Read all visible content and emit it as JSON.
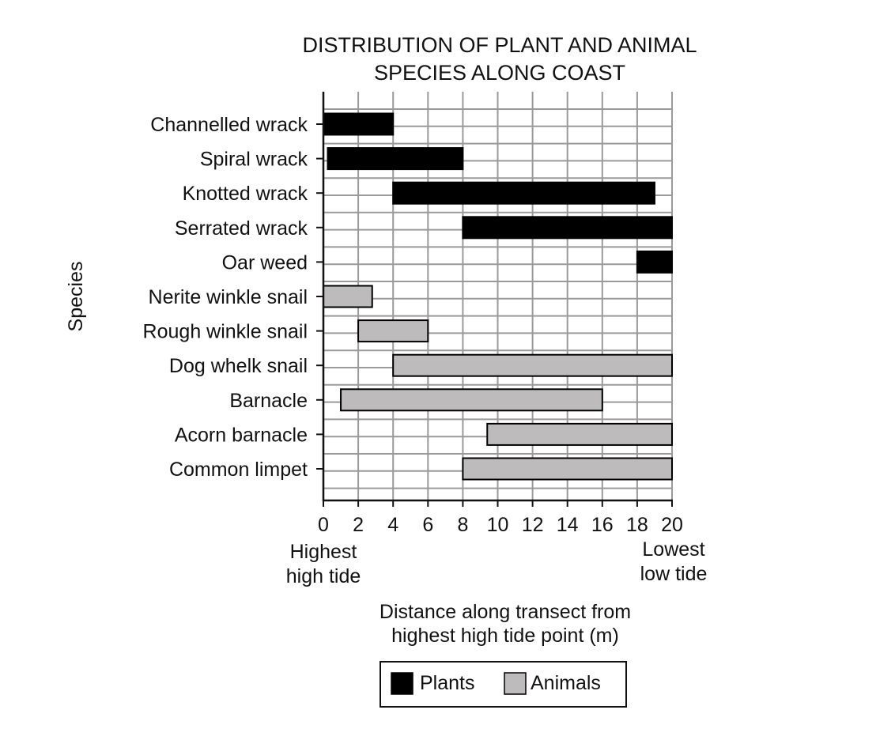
{
  "chart_data": {
    "type": "bar",
    "title_lines": [
      "DISTRIBUTION OF PLANT AND ANIMAL",
      "SPECIES ALONG COAST"
    ],
    "ylabel": "Species",
    "xlabel_lines": [
      "Distance along transect from",
      "highest high tide point (m)"
    ],
    "xlim": [
      0,
      20
    ],
    "xticks": [
      "0",
      "2",
      "4",
      "6",
      "8",
      "10",
      "12",
      "14",
      "16",
      "18",
      "20"
    ],
    "x_annotations": {
      "left": [
        "Highest",
        "high tide"
      ],
      "right": [
        "Lowest",
        "low tide"
      ]
    },
    "grid": true,
    "legend": {
      "placement": "bottom-center",
      "items": [
        {
          "label": "Plants",
          "color": "#000000"
        },
        {
          "label": "Animals",
          "color": "#bdbbbb"
        }
      ]
    },
    "species": [
      {
        "name": "Channelled wrack",
        "group": "Plants",
        "start": 0,
        "end": 4
      },
      {
        "name": "Spiral wrack",
        "group": "Plants",
        "start": 0.25,
        "end": 8
      },
      {
        "name": "Knotted wrack",
        "group": "Plants",
        "start": 4,
        "end": 19
      },
      {
        "name": "Serrated wrack",
        "group": "Plants",
        "start": 8,
        "end": 20
      },
      {
        "name": "Oar weed",
        "group": "Plants",
        "start": 18,
        "end": 20
      },
      {
        "name": "Nerite winkle snail",
        "group": "Animals",
        "start": 0,
        "end": 2.8
      },
      {
        "name": "Rough winkle snail",
        "group": "Animals",
        "start": 2,
        "end": 6
      },
      {
        "name": "Dog whelk snail",
        "group": "Animals",
        "start": 4,
        "end": 20
      },
      {
        "name": "Barnacle",
        "group": "Animals",
        "start": 1,
        "end": 16
      },
      {
        "name": "Acorn barnacle",
        "group": "Animals",
        "start": 9.4,
        "end": 20
      },
      {
        "name": "Common limpet",
        "group": "Animals",
        "start": 8,
        "end": 20
      }
    ]
  }
}
